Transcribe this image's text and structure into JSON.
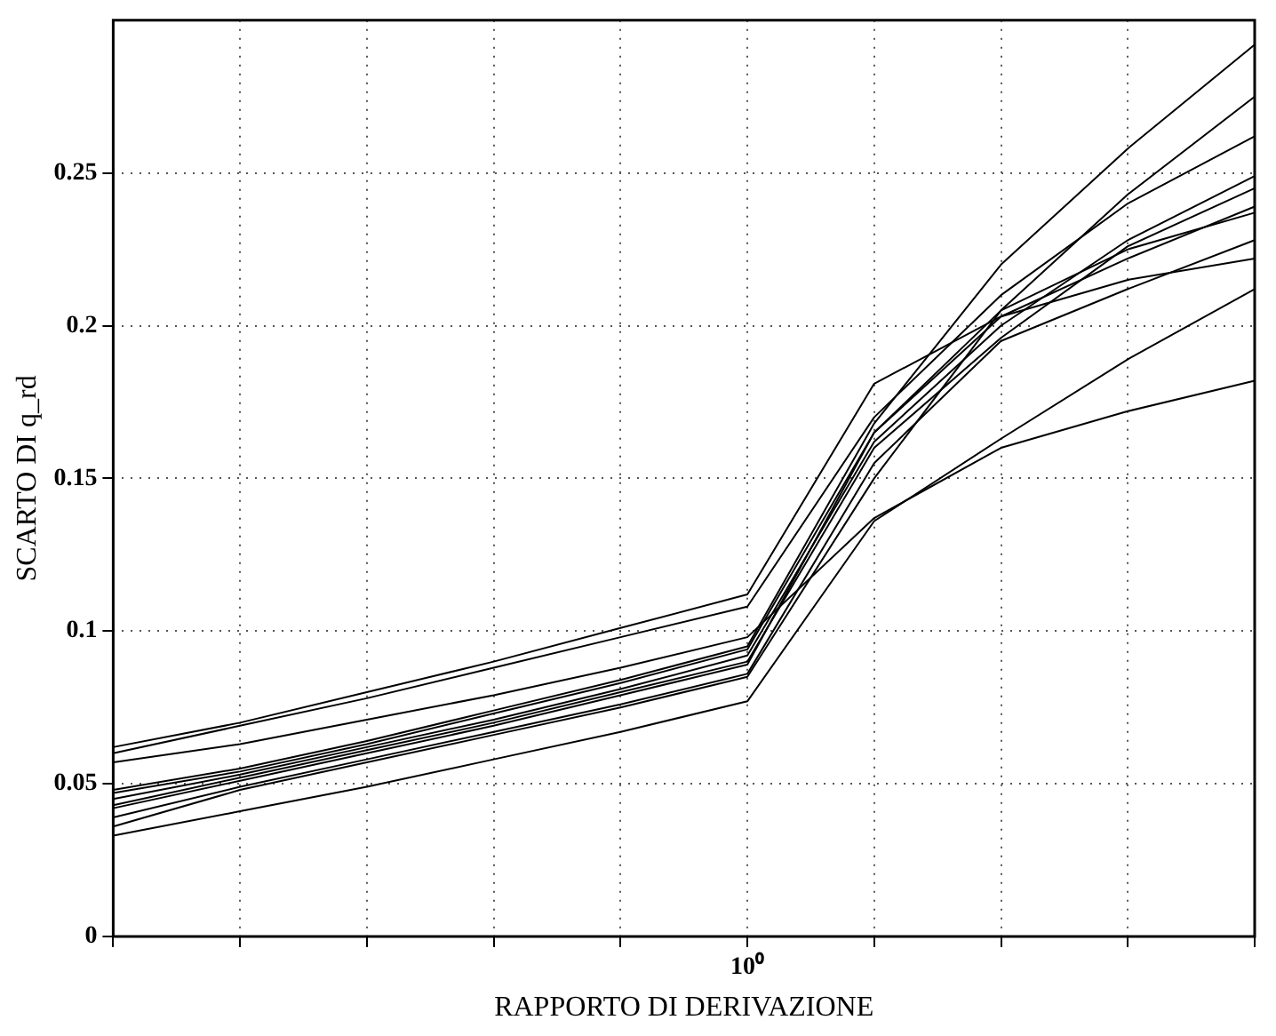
{
  "chart_data": {
    "type": "line",
    "xlabel": "RAPPORTO DI DERIVAZIONE",
    "ylabel": "SCARTO DI q_rd",
    "grid": true,
    "legend": false,
    "marker": "none",
    "line_style": "solid",
    "categories": [
      null,
      null,
      null,
      null,
      null,
      "10⁰",
      null,
      null,
      null,
      null
    ],
    "ylim": [
      0,
      0.3
    ],
    "yticks": [
      0,
      0.05,
      0.1,
      0.15,
      0.2,
      0.25
    ],
    "series": [
      {
        "color": "#000000",
        "values": [
          0.062,
          0.07,
          0.08,
          0.09,
          0.101,
          0.112,
          0.181,
          0.203,
          0.215,
          0.222
        ]
      },
      {
        "color": "#000000",
        "values": [
          0.06,
          0.069,
          0.078,
          0.088,
          0.098,
          0.108,
          0.17,
          0.21,
          0.24,
          0.262
        ]
      },
      {
        "color": "#000000",
        "values": [
          0.057,
          0.063,
          0.071,
          0.079,
          0.088,
          0.098,
          0.137,
          0.16,
          0.172,
          0.182
        ]
      },
      {
        "color": "#000000",
        "values": [
          0.048,
          0.055,
          0.064,
          0.074,
          0.084,
          0.095,
          0.168,
          0.22,
          0.258,
          0.292
        ]
      },
      {
        "color": "#000000",
        "values": [
          0.047,
          0.054,
          0.063,
          0.073,
          0.083,
          0.094,
          0.165,
          0.205,
          0.243,
          0.275
        ]
      },
      {
        "color": "#000000",
        "values": [
          0.045,
          0.053,
          0.062,
          0.071,
          0.081,
          0.092,
          0.162,
          0.2,
          0.228,
          0.249
        ]
      },
      {
        "color": "#000000",
        "values": [
          0.043,
          0.052,
          0.061,
          0.07,
          0.08,
          0.09,
          0.16,
          0.196,
          0.226,
          0.245
        ]
      },
      {
        "color": "#000000",
        "values": [
          0.042,
          0.051,
          0.06,
          0.069,
          0.079,
          0.089,
          0.165,
          0.203,
          0.222,
          0.239
        ]
      },
      {
        "color": "#000000",
        "values": [
          0.039,
          0.049,
          0.058,
          0.067,
          0.076,
          0.086,
          0.155,
          0.195,
          0.212,
          0.228
        ]
      },
      {
        "color": "#000000",
        "values": [
          0.036,
          0.048,
          0.057,
          0.066,
          0.075,
          0.085,
          0.15,
          0.205,
          0.225,
          0.237
        ]
      },
      {
        "color": "#000000",
        "values": [
          0.033,
          0.041,
          0.049,
          0.058,
          0.067,
          0.077,
          0.136,
          0.163,
          0.189,
          0.212
        ]
      }
    ]
  }
}
